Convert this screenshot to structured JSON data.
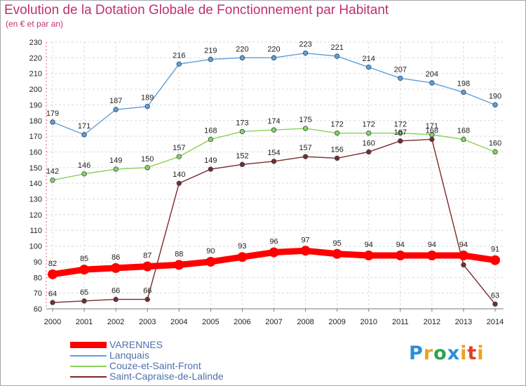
{
  "title": "Evolution de la Dotation Globale de Fonctionnement par Habitant",
  "subtitle": "(en € et par an)",
  "logo": {
    "text": "Proxiti"
  },
  "chart_data": {
    "type": "line",
    "title": "Evolution de la Dotation Globale de Fonctionnement par Habitant",
    "subtitle": "(en € et par an)",
    "xlabel": "",
    "ylabel": "",
    "x": [
      "2000",
      "2001",
      "2002",
      "2003",
      "2004",
      "2005",
      "2006",
      "2007",
      "2008",
      "2009",
      "2010",
      "2011",
      "2012",
      "2013",
      "2014"
    ],
    "ylim": [
      60,
      230
    ],
    "yticks": [
      60,
      70,
      80,
      90,
      100,
      110,
      120,
      130,
      140,
      150,
      160,
      170,
      180,
      190,
      200,
      210,
      220,
      230
    ],
    "grid": true,
    "legend_position": "bottom-left",
    "series": [
      {
        "name": "VARENNES",
        "color": "#ff0000",
        "emphasis": true,
        "values": [
          82,
          85,
          86,
          87,
          88,
          90,
          93,
          96,
          97,
          95,
          94,
          94,
          94,
          94,
          91
        ]
      },
      {
        "name": "Lanquais",
        "color": "#5d9fd9",
        "values": [
          179,
          171,
          187,
          189,
          216,
          219,
          220,
          220,
          223,
          221,
          214,
          207,
          204,
          198,
          190
        ]
      },
      {
        "name": "Couze-et-Saint-Front",
        "color": "#8bd15a",
        "values": [
          142,
          146,
          149,
          150,
          157,
          168,
          173,
          174,
          175,
          172,
          172,
          172,
          171,
          168,
          160
        ]
      },
      {
        "name": "Saint-Capraise-de-Lalinde",
        "color": "#7a2a2a",
        "values": [
          64,
          65,
          66,
          66,
          140,
          149,
          152,
          154,
          157,
          156,
          160,
          167,
          168,
          88,
          63
        ]
      }
    ]
  }
}
